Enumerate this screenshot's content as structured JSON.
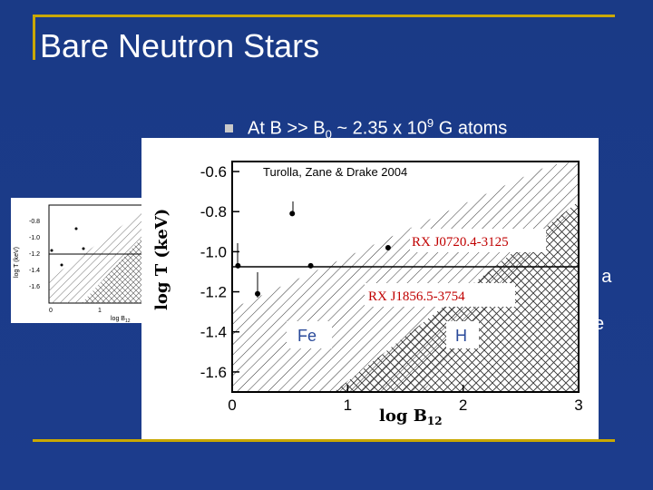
{
  "slide": {
    "title": "Bare Neutron Stars",
    "bullet_prefix": "At  B >> B",
    "bullet_sub": "0",
    "bullet_mid": " ~ 2.35 x 10",
    "bullet_sup": "9",
    "bullet_suffix": " G atoms",
    "fragment_1": "of a",
    "fragment_2": "e"
  },
  "figure": {
    "credit": "Turolla, Zane & Drake 2004",
    "ylabel": "log T (keV)",
    "xlabel": "log B",
    "xlabel_sub": "12",
    "yticks": [
      "-0.6",
      "-0.8",
      "-1.0",
      "-1.2",
      "-1.4",
      "-1.6"
    ],
    "xticks": [
      "0",
      "1",
      "2",
      "3"
    ],
    "label_src1": "RX J0720.4-3125",
    "label_src2": "RX J1856.5-3754",
    "region_fe": "Fe",
    "region_h": "H"
  },
  "thumbnail": {
    "ylabel": "log T (keV)",
    "xlabel": "log B",
    "xlabel_sub": "12",
    "yticks": [
      "-0.8",
      "-1.0",
      "-1.2",
      "-1.4",
      "-1.6"
    ],
    "xticks": [
      "0",
      "1"
    ]
  },
  "chart_data": {
    "type": "scatter",
    "xlabel": "log B12",
    "ylabel": "log T (keV)",
    "xlim": [
      0,
      3
    ],
    "ylim": [
      -1.7,
      -0.55
    ],
    "points": [
      {
        "x": 0.05,
        "y": -1.07
      },
      {
        "x": 0.22,
        "y": -1.21
      },
      {
        "x": 0.52,
        "y": -0.81
      },
      {
        "x": 0.68,
        "y": -1.07
      },
      {
        "x": 1.35,
        "y": -0.98
      }
    ],
    "reference_line_y": -1.12
  }
}
